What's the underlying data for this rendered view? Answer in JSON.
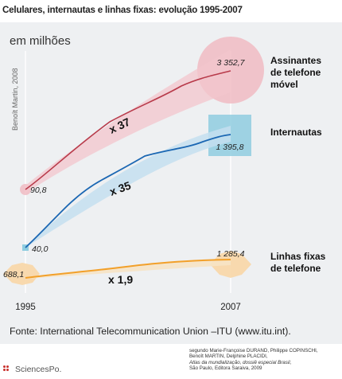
{
  "chart_data": {
    "type": "line",
    "title": "Celulares, internautas e linhas fixas: evolução 1995-2007",
    "unit_label": "em milhões",
    "vertical_credit": "Benoît Martin, 2008",
    "x_ticks": [
      "1995",
      "2007"
    ],
    "series": [
      {
        "key": "mobile",
        "name": "Assinantes de telefone móvel",
        "legend_lines": [
          "Assinantes",
          "de telefone",
          "móvel"
        ],
        "color": "#b83a4a",
        "start_label": "90,8",
        "end_label": "3 352,7",
        "multiplier_label": "x 37"
      },
      {
        "key": "internet",
        "name": "Internautas",
        "legend_lines": [
          "Internautas"
        ],
        "color": "#1b67b3",
        "start_label": "40,0",
        "end_label": "1 395,8",
        "multiplier_label": "x 35"
      },
      {
        "key": "fixed",
        "name": "Linhas fixas de telefone",
        "legend_lines": [
          "Linhas fixas",
          "de telefone"
        ],
        "color": "#f2a02a",
        "start_label": "688,1",
        "end_label": "1 285,4",
        "multiplier_label": "x 1,9"
      }
    ]
  },
  "source": "Fonte: International Telecommunication Union –ITU (www.itu.int).",
  "credit_lines": [
    "segundo Marie-Françoise DURAND, Philippe COPINSCHI,",
    "Benoît MARTIN, Delphine PLACIDI,",
    "Atlas da mundialização, dossiê especial Brasil,",
    "São Paulo, Editora Saraiva, 2009"
  ],
  "logo_text": "SciencesPo."
}
